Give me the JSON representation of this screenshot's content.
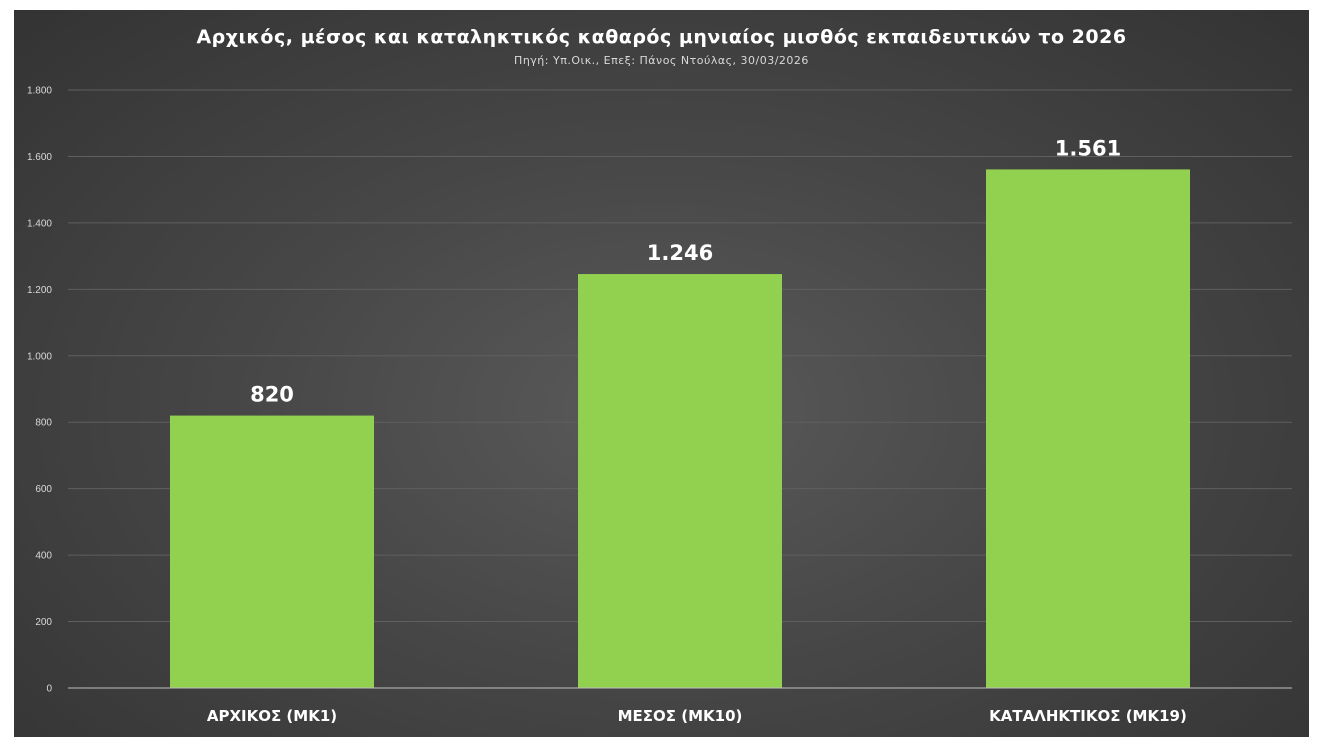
{
  "header": {
    "title": "Αρχικός, μέσος και καταληκτικός καθαρός μηνιαίος μισθός εκπαιδευτικών το 2026",
    "subtitle": "Πηγή: Υπ.Οικ., Επεξ: Πάνος Ντούλας, 30/03/2026"
  },
  "chart_data": {
    "type": "bar",
    "title": "Αρχικός, μέσος και καταληκτικός καθαρός μηνιαίος μισθός εκπαιδευτικών το 2026",
    "subtitle": "Πηγή: Υπ.Οικ., Επεξ: Πάνος Ντούλας, 30/03/2026",
    "categories": [
      "ΑΡΧΙΚΟΣ (ΜΚ1)",
      "ΜΕΣΟΣ (ΜΚ10)",
      "ΚΑΤΑΛΗΚΤΙΚΟΣ (ΜΚ19)"
    ],
    "values": [
      820,
      1246,
      1561
    ],
    "data_labels": [
      "820",
      "1.246",
      "1.561"
    ],
    "ylim": [
      0,
      1800
    ],
    "yticks": [
      0,
      200,
      400,
      600,
      800,
      1000,
      1200,
      1400,
      1600,
      1800
    ],
    "ytick_labels": [
      "0",
      "200",
      "400",
      "600",
      "800",
      "1.000",
      "1.200",
      "1.400",
      "1.600",
      "1.800"
    ],
    "grid": true,
    "legend": "none",
    "colors": {
      "bar": "#92d050",
      "background": "#474747",
      "grid": "#5f5f5f",
      "axis": "#bfbfbf",
      "text": "#ffffff"
    }
  }
}
